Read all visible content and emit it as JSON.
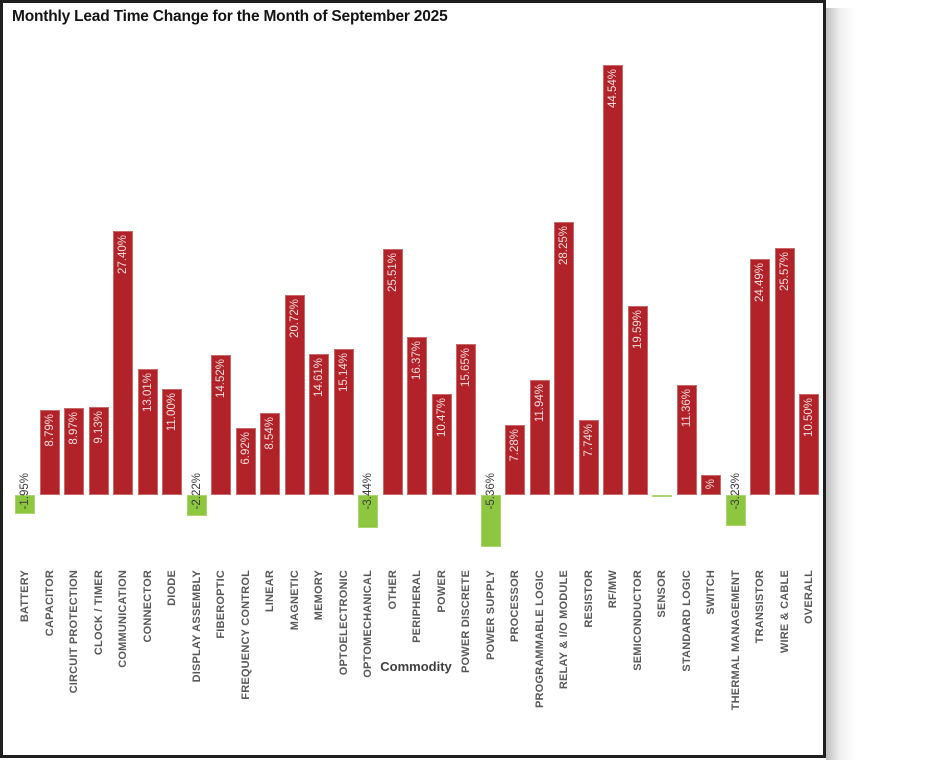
{
  "chart_data": {
    "type": "bar",
    "title": "Monthly Lead Time Change for the Month of September 2025",
    "xlabel": "Commodity",
    "ylabel": "",
    "ylim": [
      -6,
      46
    ],
    "grid": false,
    "legend": false,
    "categories": [
      "BATTERY",
      "CAPACITOR",
      "CIRCUIT PROTECTION",
      "CLOCK / TIMER",
      "COMMUNICATION",
      "CONNECTOR",
      "DIODE",
      "DISPLAY ASSEMBLY",
      "FIBEROPTIC",
      "FREQUENCY CONTROL",
      "LINEAR",
      "MAGNETIC",
      "MEMORY",
      "OPTOELECTRONIC",
      "OPTOMECHANICAL",
      "OTHER",
      "PERIPHERAL",
      "POWER",
      "POWER DISCRETE",
      "POWER SUPPLY",
      "PROCESSOR",
      "PROGRAMMABLE LOGIC",
      "RELAY & I/O MODULE",
      "RESISTOR",
      "RF/MW",
      "SEMICONDUCTOR",
      "SENSOR",
      "STANDARD LOGIC",
      "SWITCH",
      "THERMAL MANAGEMENT",
      "TRANSISTOR",
      "WIRE & CABLE",
      "OVERALL"
    ],
    "values": [
      -1.95,
      8.79,
      8.97,
      9.13,
      27.4,
      13.01,
      11.0,
      -2.22,
      14.52,
      6.92,
      8.54,
      20.72,
      14.61,
      15.14,
      -3.44,
      25.51,
      16.37,
      10.47,
      15.65,
      -5.36,
      7.28,
      11.94,
      28.25,
      7.74,
      44.54,
      19.59,
      -0.15,
      11.36,
      2.1,
      -3.23,
      24.49,
      25.57,
      10.5
    ],
    "labels": [
      "-1.95%",
      "8.79%",
      "8.97%",
      "9.13%",
      "27.40%",
      "13.01%",
      "11.00%",
      "-2.22%",
      "14.52%",
      "6.92%",
      "8.54%",
      "20.72%",
      "14.61%",
      "15.14%",
      "-3.44%",
      "25.51%",
      "16.37%",
      "10.47%",
      "15.65%",
      "-5.36%",
      "7.28%",
      "11.94%",
      "28.25%",
      "7.74%",
      "44.54%",
      "19.59%",
      "",
      "11.36%",
      "%",
      "-3.23%",
      "24.49%",
      "25.57%",
      "10.50%"
    ],
    "colors": {
      "bar_positive": "#B12328",
      "bar_positive_edge": "#C96A6A",
      "bar_negative": "#8DC63F",
      "bar_negative_edge": "#ADD470",
      "label_on_positive": "#F0DBDB",
      "label_on_negative": "#3d3d3d",
      "tick_label": "#595959",
      "title_text": "#141414",
      "frame_border": "#1f1f1f"
    },
    "notes": "SENSOR bar is a near-zero negative sliver with no visible value label; SWITCH bar is too short so only the % of its value label is visible."
  }
}
